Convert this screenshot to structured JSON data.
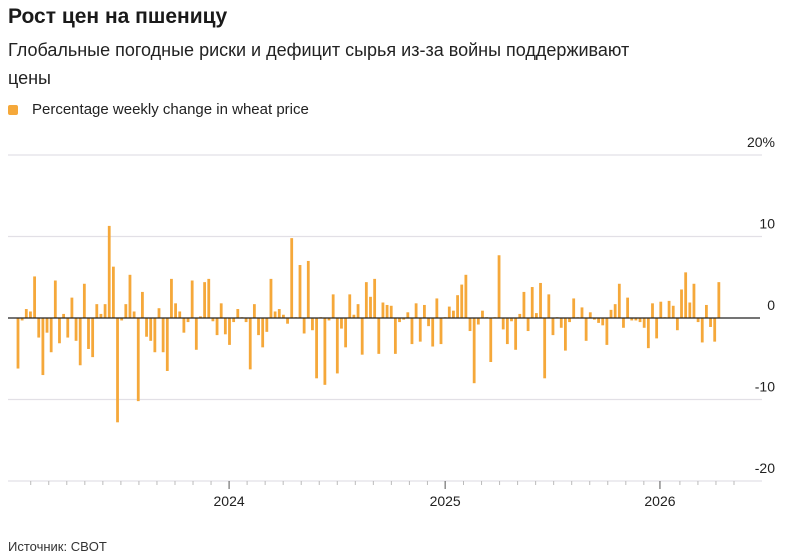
{
  "title": "Рост цен на пшеницу",
  "subtitle": "Глобальные погодные риски и дефицит сырья из-за войны поддерживают цены",
  "source": "Источник: CBOT",
  "colors": {
    "bar": "#f5a83a",
    "grid": "#e2e0e6",
    "zero": "#222222"
  },
  "chart_data": {
    "type": "bar",
    "title": "Рост цен на пшеницу",
    "legend": [
      {
        "label": "Percentage weekly change in wheat price",
        "color": "#f5a83a"
      }
    ],
    "legend_placement": "top-left",
    "xlabel": "",
    "ylabel": "",
    "x_unit": "week index (weekly, from early 2023)",
    "ylim": [
      -20,
      20
    ],
    "y_ticks": [
      {
        "value": 20,
        "label": "20%"
      },
      {
        "value": 10,
        "label": "10"
      },
      {
        "value": 0,
        "label": "0"
      },
      {
        "value": -10,
        "label": "-10"
      },
      {
        "value": -20,
        "label": "-20"
      }
    ],
    "x_ticks": [
      {
        "index": 50.9,
        "label": "2024"
      },
      {
        "index": 103,
        "label": "2025"
      },
      {
        "index": 154.8,
        "label": "2026"
      }
    ],
    "grid": true,
    "values": [
      -6.2,
      -0.3,
      1.1,
      0.8,
      5.1,
      -2.4,
      -7,
      -1.8,
      -4.2,
      4.6,
      -3.1,
      0.5,
      -2.4,
      2.5,
      -2.8,
      -5.8,
      4.2,
      -3.8,
      -4.8,
      1.7,
      0.5,
      1.7,
      11.3,
      6.3,
      -12.8,
      -0.3,
      1.7,
      5.3,
      0.8,
      -10.2,
      3.2,
      -2.3,
      -2.8,
      -4.2,
      1.2,
      -4.2,
      -6.5,
      4.8,
      1.8,
      0.8,
      -1.8,
      -0.5,
      4.6,
      -3.9,
      0.2,
      4.4,
      4.8,
      -0.4,
      -2.1,
      1.8,
      -2,
      -3.3,
      -0.5,
      1.1,
      0,
      -0.5,
      -6.3,
      1.7,
      -2.1,
      -3.6,
      -1.7,
      4.8,
      0.8,
      1.1,
      0.4,
      -0.7,
      9.8,
      0,
      6.5,
      -1.9,
      7,
      -1.5,
      -7.4,
      0,
      -8.2,
      -0.3,
      2.9,
      -6.8,
      -1.3,
      -3.6,
      2.9,
      0.4,
      1.7,
      -4.5,
      4.4,
      2.6,
      4.8,
      -4.4,
      1.9,
      1.6,
      1.5,
      -4.4,
      -0.5,
      -0.2,
      0.7,
      -3.2,
      1.8,
      -2.9,
      1.6,
      -1,
      -3.5,
      2.4,
      -3.2,
      0.1,
      1.4,
      0.9,
      2.8,
      4.1,
      5.3,
      -1.6,
      -8,
      -0.8,
      0.9,
      0.1,
      -5.4,
      0,
      7.7,
      -1.4,
      -3.2,
      -0.4,
      -3.9,
      0.5,
      3.2,
      -1.6,
      3.8,
      0.6,
      4.3,
      -7.4,
      2.9,
      -2.1,
      0.1,
      -1.2,
      -4,
      -0.5,
      2.4,
      0,
      1.3,
      -2.8,
      0.7,
      -0.2,
      -0.6,
      -0.9,
      -3.3,
      1,
      1.7,
      4.2,
      -1.2,
      2.5,
      -0.3,
      -0.3,
      -0.5,
      -1.2,
      -3.7,
      1.8,
      -2.5,
      2,
      0,
      2.1,
      1.5,
      -1.5,
      3.5,
      5.6,
      1.9,
      4.2,
      -0.5,
      -3,
      1.6,
      -1.1,
      -2.9,
      4.4
    ]
  }
}
